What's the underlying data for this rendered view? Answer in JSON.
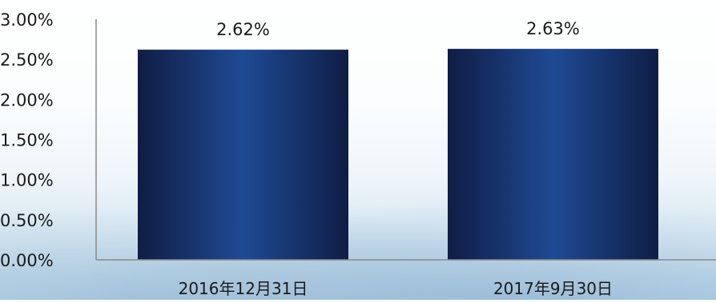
{
  "chart_data": {
    "type": "bar",
    "categories": [
      "2016年12月31日",
      "2017年9月30日"
    ],
    "values": [
      2.62,
      2.63
    ],
    "data_labels": [
      "2.62%",
      "2.63%"
    ],
    "ylim": [
      0,
      3.0
    ],
    "yticks": [
      0,
      0.5,
      1.0,
      1.5,
      2.0,
      2.5,
      3.0
    ],
    "ytick_labels": [
      "0.00%",
      "0.50%",
      "1.00%",
      "1.50%",
      "2.00%",
      "2.50%",
      "3.00%"
    ],
    "title": "",
    "xlabel": "",
    "ylabel": "",
    "grid": false,
    "legend": "none",
    "colors": {
      "bar_edge": "#0f1d45",
      "bar_center": "#1f4a94",
      "text": "#1a1a1a",
      "axis": "#8a8a8a"
    }
  }
}
